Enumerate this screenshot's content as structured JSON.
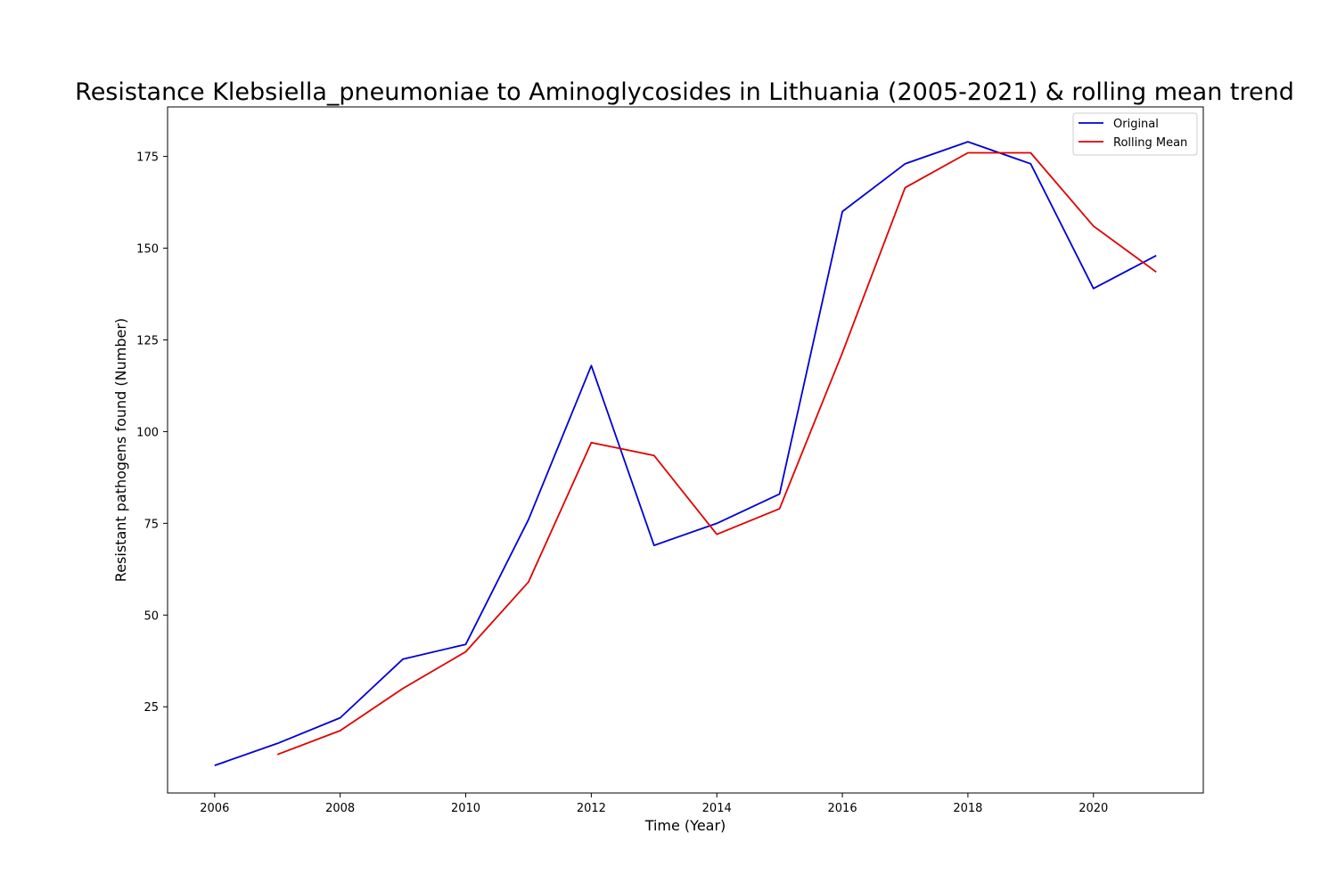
{
  "chart_data": {
    "type": "line",
    "title": "Resistance Klebsiella_pneumoniae to Aminoglycosides in Lithuania (2005-2021) & rolling mean trend",
    "xlabel": "Time (Year)",
    "ylabel": "Resistant pathogens found (Number)",
    "xlim": [
      2005.25,
      2021.75
    ],
    "ylim": [
      1.5,
      188.5
    ],
    "xticks": [
      2006,
      2008,
      2010,
      2012,
      2014,
      2016,
      2018,
      2020
    ],
    "yticks": [
      25,
      50,
      75,
      100,
      125,
      150,
      175
    ],
    "grid": false,
    "legend_position": "top-right",
    "colors": {
      "original": "#0000d6",
      "rolling": "#e00000"
    },
    "series": [
      {
        "name": "Original",
        "color": "#0000d6",
        "x": [
          2006,
          2007,
          2008,
          2009,
          2010,
          2011,
          2012,
          2013,
          2014,
          2015,
          2016,
          2017,
          2018,
          2019,
          2020,
          2021
        ],
        "y": [
          9,
          15,
          22,
          38,
          42,
          76,
          118,
          69,
          75,
          83,
          160,
          173,
          179,
          173,
          139,
          148
        ]
      },
      {
        "name": "Rolling Mean",
        "color": "#e00000",
        "x": [
          2007,
          2008,
          2009,
          2010,
          2011,
          2012,
          2013,
          2014,
          2015,
          2016,
          2017,
          2018,
          2019,
          2020,
          2021
        ],
        "y": [
          12,
          18.5,
          30,
          40,
          59,
          97,
          93.5,
          72,
          79,
          121.5,
          166.5,
          176,
          176,
          156,
          143.5
        ]
      }
    ]
  }
}
